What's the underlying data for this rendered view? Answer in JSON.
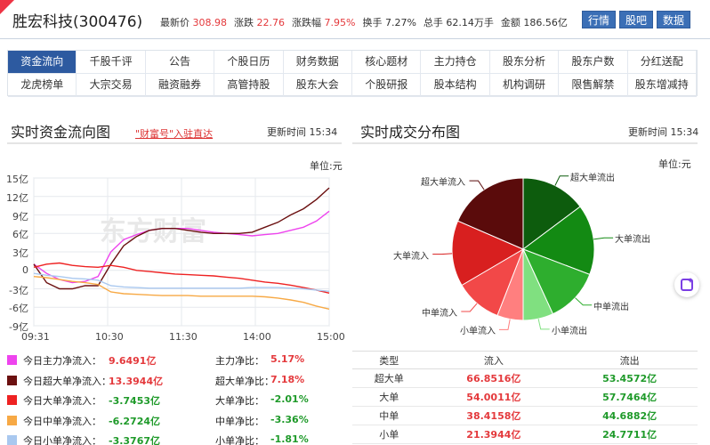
{
  "stock": {
    "name_code": "胜宏科技(300476)",
    "quote": [
      {
        "label": "最新价",
        "value": "308.98",
        "highlight": true
      },
      {
        "label": "涨跌",
        "value": "22.76",
        "highlight": true
      },
      {
        "label": "涨跌幅",
        "value": "7.95%",
        "highlight": true
      },
      {
        "label": "换手",
        "value": "7.27%",
        "highlight": false
      },
      {
        "label": "总手",
        "value": "62.14万手",
        "highlight": false
      },
      {
        "label": "金额",
        "value": "186.56亿",
        "highlight": false
      }
    ],
    "buttons": [
      "行情",
      "股吧",
      "数据"
    ]
  },
  "nav": {
    "row1": [
      "资金流向",
      "千股千评",
      "公告",
      "个股日历",
      "财务数据",
      "核心题材",
      "主力持仓",
      "股东分析",
      "股东户数",
      "分红送配"
    ],
    "row2": [
      "龙虎榜单",
      "大宗交易",
      "融资融券",
      "高管持股",
      "股东大会",
      "个股研报",
      "股本结构",
      "机构调研",
      "限售解禁",
      "股东增减持"
    ],
    "active": "资金流向"
  },
  "left": {
    "title": "实时资金流向图",
    "link": "\"财富号\"入驻直达",
    "update": "更新时间 15:34",
    "unit": "单位:元",
    "watermark": "东方财富",
    "legend": [
      {
        "label": "今日主力净流入：",
        "value": "9.6491亿",
        "ratio_label": "主力净比：",
        "ratio": "5.17%",
        "sign": "pos",
        "color": "#ee44ee"
      },
      {
        "label": "今日超大单净流入：",
        "value": "13.3944亿",
        "ratio_label": "超大单净比：",
        "ratio": "7.18%",
        "sign": "pos",
        "color": "#6b1010"
      },
      {
        "label": "今日大单净流入：",
        "value": "-3.7453亿",
        "ratio_label": "大单净比：",
        "ratio": "-2.01%",
        "sign": "neg",
        "color": "#ee2222"
      },
      {
        "label": "今日中单净流入：",
        "value": "-6.2724亿",
        "ratio_label": "中单净比：",
        "ratio": "-3.36%",
        "sign": "neg",
        "color": "#f7a945"
      },
      {
        "label": "今日小单净流入：",
        "value": "-3.3767亿",
        "ratio_label": "小单净比：",
        "ratio": "-1.81%",
        "sign": "neg",
        "color": "#a9c8ef"
      }
    ]
  },
  "right": {
    "title": "实时成交分布图",
    "update": "更新时间 15:34",
    "unit": "单位:元",
    "table": {
      "headers": [
        "类型",
        "流入",
        "流出"
      ],
      "rows": [
        {
          "type": "超大单",
          "in": "66.8516亿",
          "out": "53.4572亿"
        },
        {
          "type": "大单",
          "in": "54.0011亿",
          "out": "57.7464亿"
        },
        {
          "type": "中单",
          "in": "38.4158亿",
          "out": "44.6882亿"
        },
        {
          "type": "小单",
          "in": "21.3944亿",
          "out": "24.7711亿"
        }
      ]
    }
  },
  "chart_data": [
    {
      "type": "line",
      "title": "实时资金流向图",
      "ylabel": "单位:元",
      "ylim": [
        -9,
        15
      ],
      "yticks": [
        "15亿",
        "12亿",
        "9亿",
        "6亿",
        "3亿",
        "0",
        "-3亿",
        "-6亿",
        "-9亿"
      ],
      "ytick_values": [
        15,
        12,
        9,
        6,
        3,
        0,
        -3,
        -6,
        -9
      ],
      "xticks": [
        "09:31",
        "10:30",
        "11:30",
        "14:00",
        "15:00"
      ],
      "grid": true,
      "series": [
        {
          "name": "主力净流入",
          "color": "#ee44ee",
          "values": [
            1,
            -0.5,
            -1.5,
            -2,
            -1.8,
            -1,
            3,
            5,
            5.8,
            6.5,
            6.8,
            6.8,
            6.8,
            6.5,
            6.2,
            6,
            5.8,
            5.6,
            5.8,
            6,
            6.5,
            7,
            8,
            9.6
          ]
        },
        {
          "name": "超大单净流入",
          "color": "#6b1010",
          "values": [
            1,
            -2,
            -3,
            -3,
            -2.5,
            -2.5,
            1,
            4,
            5.5,
            6.5,
            6.8,
            6.8,
            6.5,
            6.2,
            6,
            6,
            6,
            6.2,
            7,
            7.8,
            9,
            10,
            11.5,
            13.4
          ]
        },
        {
          "name": "大单净流入",
          "color": "#ee2222",
          "values": [
            0.5,
            1,
            1.2,
            0.8,
            0.6,
            0.5,
            0.8,
            0.5,
            0,
            -0.2,
            -0.4,
            -0.6,
            -0.7,
            -0.8,
            -0.9,
            -1.1,
            -1.3,
            -1.6,
            -1.9,
            -2.1,
            -2.4,
            -2.8,
            -3.2,
            -3.7
          ]
        },
        {
          "name": "中单净流入",
          "color": "#f7a945",
          "values": [
            -1,
            -1.2,
            -1.5,
            -1.8,
            -2,
            -2.3,
            -3.5,
            -3.8,
            -3.9,
            -4,
            -4.1,
            -4.1,
            -4.1,
            -4.2,
            -4.2,
            -4.2,
            -4.2,
            -4.2,
            -4.3,
            -4.5,
            -4.8,
            -5.2,
            -5.8,
            -6.3
          ]
        },
        {
          "name": "小单净流入",
          "color": "#a9c8ef",
          "values": [
            -0.5,
            -0.8,
            -1,
            -1.3,
            -1.4,
            -1.6,
            -2.5,
            -2.7,
            -2.8,
            -2.9,
            -2.9,
            -2.9,
            -2.9,
            -2.9,
            -2.9,
            -2.9,
            -2.9,
            -2.8,
            -2.8,
            -2.8,
            -2.9,
            -3,
            -3.2,
            -3.4
          ]
        }
      ]
    },
    {
      "type": "pie",
      "title": "实时成交分布图",
      "categories": [
        "超大单流出",
        "大单流出",
        "中单流出",
        "小单流出",
        "小单流入",
        "中单流入",
        "大单流入",
        "超大单流入"
      ],
      "values": [
        53.4572,
        57.7464,
        44.6882,
        24.7711,
        21.3944,
        38.4158,
        54.0011,
        66.8516
      ],
      "colors": [
        "#0d5c0d",
        "#138a13",
        "#2eae2e",
        "#80e080",
        "#ff7f7f",
        "#f24848",
        "#d81f1f",
        "#5a0b0b"
      ]
    }
  ]
}
